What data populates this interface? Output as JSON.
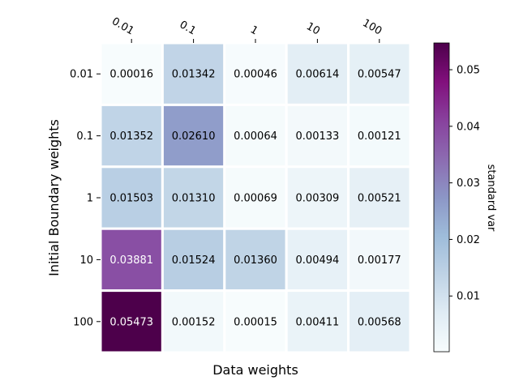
{
  "chart_data": {
    "type": "heatmap",
    "xlabel": "Data weights",
    "ylabel": "Initial Boundary weights",
    "x_categories": [
      "0.01",
      "0.1",
      "1",
      "10",
      "100"
    ],
    "y_categories": [
      "0.01",
      "0.1",
      "1",
      "10",
      "100"
    ],
    "values": [
      [
        "0.00016",
        "0.01342",
        "0.00046",
        "0.00614",
        "0.00547"
      ],
      [
        "0.01352",
        "0.02610",
        "0.00064",
        "0.00133",
        "0.00121"
      ],
      [
        "0.01503",
        "0.01310",
        "0.00069",
        "0.00309",
        "0.00521"
      ],
      [
        "0.03881",
        "0.01524",
        "0.01360",
        "0.00494",
        "0.00177"
      ],
      [
        "0.05473",
        "0.00152",
        "0.00015",
        "0.00411",
        "0.00568"
      ]
    ],
    "colorbar": {
      "label": "standard var",
      "range": [
        0.00015,
        0.05473
      ],
      "ticks": [
        "0.01",
        "0.02",
        "0.03",
        "0.04",
        "0.05"
      ],
      "colormap": "BuPu"
    },
    "x_axis_position": "top",
    "x_tick_rotation": "-30deg",
    "grid": false
  }
}
